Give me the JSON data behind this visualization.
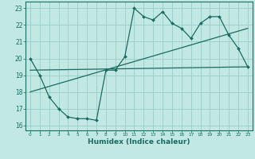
{
  "xlabel": "Humidex (Indice chaleur)",
  "bg_color": "#c2e8e4",
  "grid_color": "#9accc8",
  "line_color": "#1a6b60",
  "xlim": [
    -0.5,
    23.5
  ],
  "ylim": [
    15.7,
    23.4
  ],
  "xticks": [
    0,
    1,
    2,
    3,
    4,
    5,
    6,
    7,
    8,
    9,
    10,
    11,
    12,
    13,
    14,
    15,
    16,
    17,
    18,
    19,
    20,
    21,
    22,
    23
  ],
  "yticks": [
    16,
    17,
    18,
    19,
    20,
    21,
    22,
    23
  ],
  "line1_x": [
    0,
    1,
    2,
    3,
    4,
    5,
    6,
    7,
    8,
    9,
    10,
    11,
    12,
    13,
    14,
    15,
    16,
    17,
    18,
    19,
    20,
    21,
    22,
    23
  ],
  "line1_y": [
    20.0,
    19.0,
    17.7,
    17.0,
    16.5,
    16.4,
    16.4,
    16.3,
    19.3,
    19.3,
    20.1,
    23.0,
    22.5,
    22.3,
    22.8,
    22.1,
    21.8,
    21.2,
    22.1,
    22.5,
    22.5,
    21.4,
    20.6,
    19.5
  ],
  "line2_x": [
    0,
    23
  ],
  "line2_y": [
    19.3,
    19.5
  ],
  "line3_x": [
    0,
    23
  ],
  "line3_y": [
    18.0,
    21.8
  ]
}
